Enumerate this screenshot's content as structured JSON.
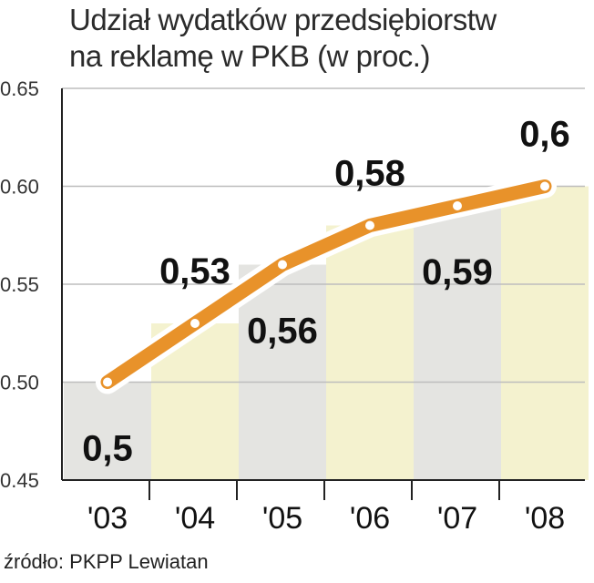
{
  "title_lines": [
    "Udział wydatków przedsiębiorstw",
    "na reklamę w PKB (w proc.)"
  ],
  "source": "źródło: PKPP Lewiatan",
  "colors": {
    "line": "#e8922a",
    "line_outline": "#ffffff",
    "point": "#ffffff",
    "bar_gray": "#e4e4e1",
    "bar_yellow": "#f4f2cf",
    "axis": "#222222",
    "grid": "#bdbdbd"
  },
  "chart_data": {
    "type": "line",
    "title": "Udział wydatków przedsiębiorstw na reklamę w PKB (w proc.)",
    "categories": [
      "'03",
      "'04",
      "'05",
      "'06",
      "'07",
      "'08"
    ],
    "values": [
      0.5,
      0.53,
      0.56,
      0.58,
      0.59,
      0.6
    ],
    "data_labels": [
      "0,5",
      "0,53",
      "0,56",
      "0,58",
      "0,59",
      "0,6"
    ],
    "y_ticks": [
      "0.45",
      "0.50",
      "0.55",
      "0.60",
      "0.65"
    ],
    "ylim": [
      0.45,
      0.65
    ],
    "xlabel": "",
    "ylabel": "",
    "background_bars": "alternating gray / yellow columns under the line",
    "grid": true
  }
}
